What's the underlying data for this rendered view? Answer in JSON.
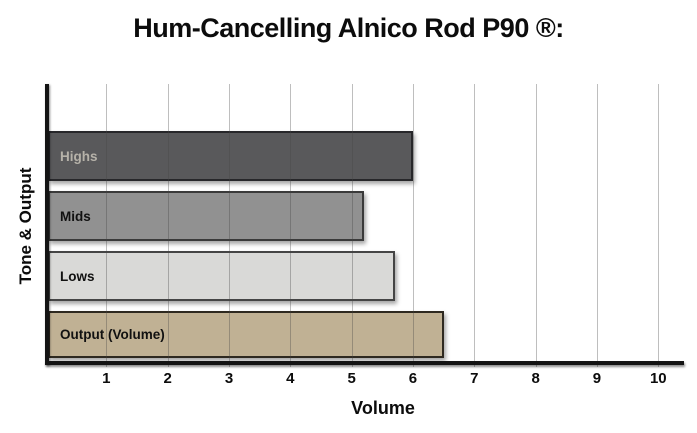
{
  "chart_data": {
    "type": "bar",
    "orientation": "horizontal",
    "title": "Hum-Cancelling Alnico Rod P90 ®:",
    "xlabel": "Volume",
    "ylabel": "Tone & Output",
    "categories": [
      "Highs",
      "Mids",
      "Lows",
      "Output (Volume)"
    ],
    "values": [
      6.0,
      5.2,
      5.7,
      6.5
    ],
    "xlim": [
      0,
      10.4
    ],
    "x_ticks": [
      1,
      2,
      3,
      4,
      5,
      6,
      7,
      8,
      9,
      10
    ],
    "grid": "vertical",
    "legend": "none",
    "background_color": "#ffffff",
    "axis_color": "#141414",
    "gridline_color": "#bdbdbd",
    "bar_fill_colors": [
      "#59595b",
      "#919191",
      "#d9d9d7",
      "#c0b194"
    ],
    "bar_border_colors": [
      "#27272a",
      "#3a3a3a",
      "#454545",
      "#2e2920"
    ],
    "bar_label_colors": [
      "#b6b2a9",
      "#111111",
      "#111111",
      "#111111"
    ]
  }
}
